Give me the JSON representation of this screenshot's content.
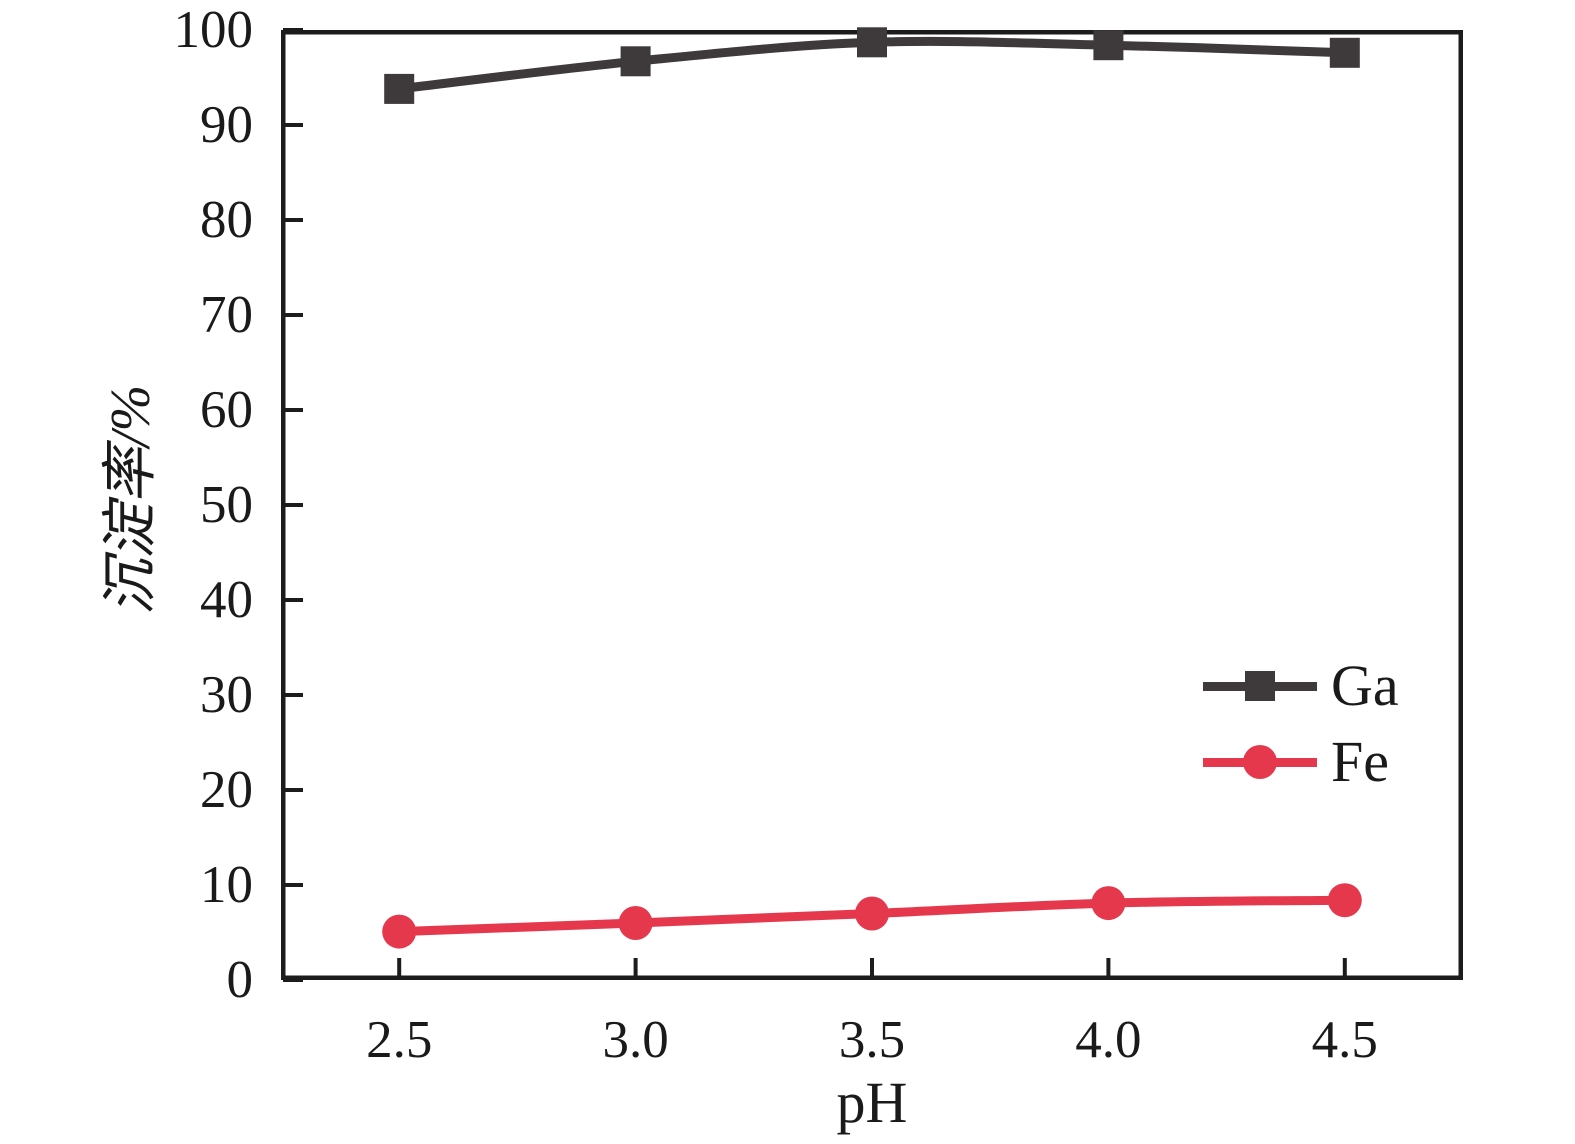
{
  "chart_data": {
    "type": "line",
    "title": "",
    "xlabel": "pH",
    "ylabel": "沉淀率/%",
    "x": [
      2.5,
      3.0,
      3.5,
      4.0,
      4.5
    ],
    "series": [
      {
        "name": "Ga",
        "color": "#3e393a",
        "marker": "square",
        "values": [
          93.8,
          96.7,
          98.7,
          98.4,
          97.6
        ]
      },
      {
        "name": "Fe",
        "color": "#e5384c",
        "marker": "circle",
        "values": [
          5.1,
          6.0,
          7.0,
          8.1,
          8.4
        ]
      }
    ],
    "xlim": [
      2.25,
      4.75
    ],
    "ylim": [
      0,
      100
    ],
    "xticks": [
      "2.5",
      "3.0",
      "3.5",
      "4.0",
      "4.5"
    ],
    "xtick_values": [
      2.5,
      3.0,
      3.5,
      4.0,
      4.5
    ],
    "yticks": [
      "0",
      "10",
      "20",
      "30",
      "40",
      "50",
      "60",
      "70",
      "80",
      "90",
      "100"
    ],
    "ytick_values": [
      0,
      10,
      20,
      30,
      40,
      50,
      60,
      70,
      80,
      90,
      100
    ],
    "grid": false,
    "legend_position": "inside-right",
    "axis_color": "#1c1c1c"
  }
}
